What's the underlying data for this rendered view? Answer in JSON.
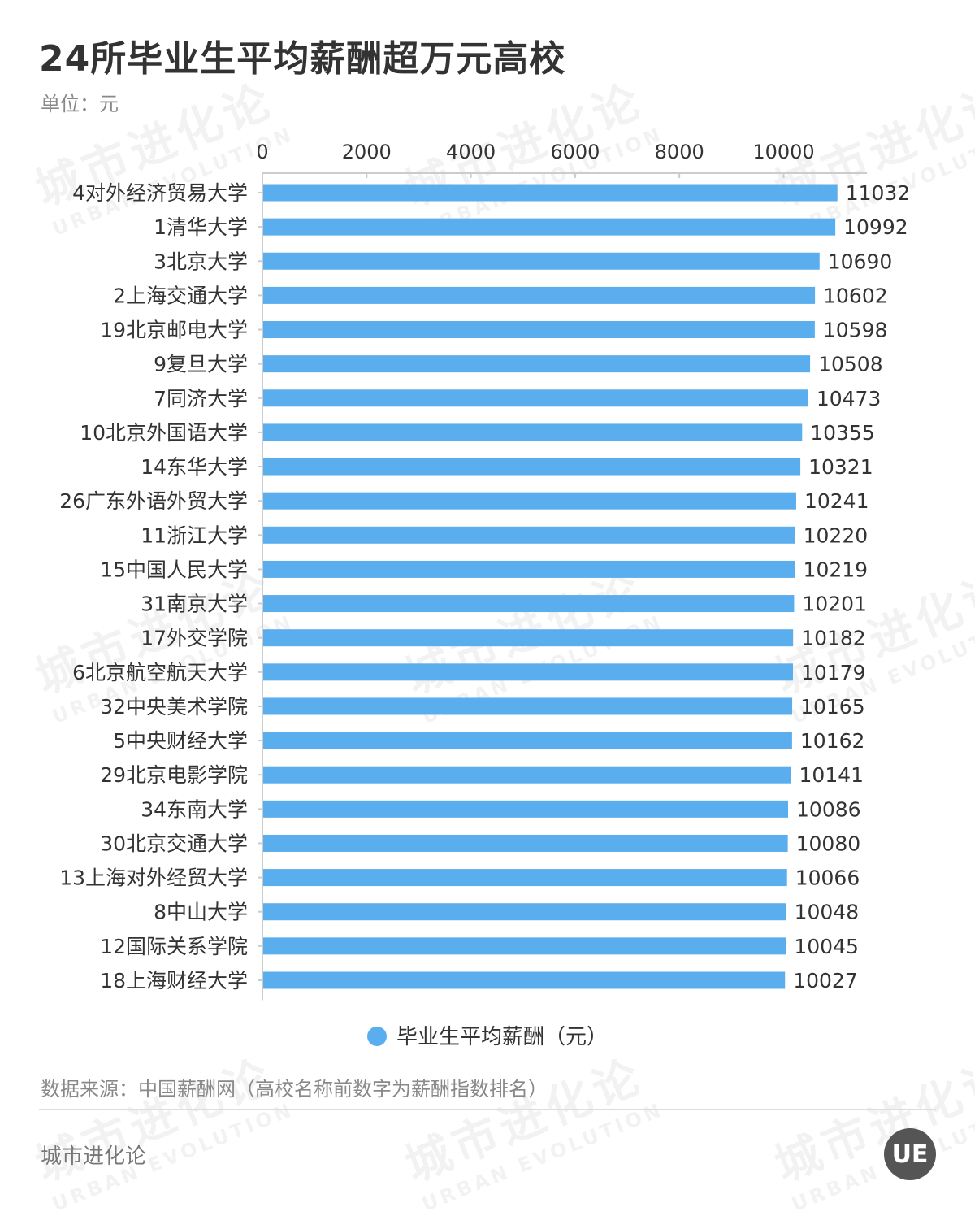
{
  "header": {
    "title": "24所毕业生平均薪酬超万元高校",
    "unit": "单位：元"
  },
  "legend": {
    "label": "毕业生平均薪酬（元）"
  },
  "source": "数据来源：中国薪酬网（高校名称前数字为薪酬指数排名）",
  "footer": {
    "brand": "城市进化论",
    "logo_text": "UE"
  },
  "watermark": {
    "cn": "城市进化论",
    "en": "URBAN EVOLUTION"
  },
  "colors": {
    "bar": "#5aaeee",
    "axis": "#cccccc",
    "text": "#333333"
  },
  "chart_data": {
    "type": "bar",
    "orientation": "horizontal",
    "title": "24所毕业生平均薪酬超万元高校",
    "xlabel": "",
    "ylabel": "",
    "xlim": [
      0,
      11600
    ],
    "x_ticks": [
      0,
      2000,
      4000,
      6000,
      8000,
      10000
    ],
    "axis_position": "top",
    "grid": false,
    "legend_position": "bottom-center",
    "categories": [
      "4对外经济贸易大学",
      "1清华大学",
      "3北京大学",
      "2上海交通大学",
      "19北京邮电大学",
      "9复旦大学",
      "7同济大学",
      "10北京外国语大学",
      "14东华大学",
      "26广东外语外贸大学",
      "11浙江大学",
      "15中国人民大学",
      "31南京大学",
      "17外交学院",
      "6北京航空航天大学",
      "32中央美术学院",
      "5中央财经大学",
      "29北京电影学院",
      "34东南大学",
      "30北京交通大学",
      "13上海对外经贸大学",
      "8中山大学",
      "12国际关系学院",
      "18上海财经大学"
    ],
    "series": [
      {
        "name": "毕业生平均薪酬（元）",
        "values": [
          11032,
          10992,
          10690,
          10602,
          10598,
          10508,
          10473,
          10355,
          10321,
          10241,
          10220,
          10219,
          10201,
          10182,
          10179,
          10165,
          10162,
          10141,
          10086,
          10080,
          10066,
          10048,
          10045,
          10027
        ]
      }
    ]
  }
}
